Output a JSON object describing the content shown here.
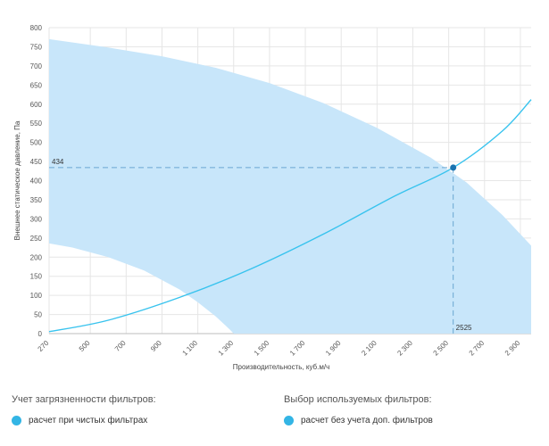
{
  "chart_data": {
    "type": "line",
    "xlabel": "Производительность, куб.м/ч",
    "ylabel": "Внешнее статическое давление, Па",
    "xlim": [
      270,
      2960
    ],
    "ylim": [
      0,
      800
    ],
    "y_ticks": [
      0,
      50,
      100,
      150,
      200,
      250,
      300,
      350,
      400,
      450,
      500,
      550,
      600,
      650,
      700,
      750,
      800
    ],
    "x_ticks": [
      {
        "value": 270,
        "label": "270"
      },
      {
        "value": 500,
        "label": "500"
      },
      {
        "value": 700,
        "label": "700"
      },
      {
        "value": 900,
        "label": "900"
      },
      {
        "value": 1100,
        "label": "1 100"
      },
      {
        "value": 1300,
        "label": "1 300"
      },
      {
        "value": 1500,
        "label": "1 500"
      },
      {
        "value": 1700,
        "label": "1 700"
      },
      {
        "value": 1900,
        "label": "1 900"
      },
      {
        "value": 2100,
        "label": "2 100"
      },
      {
        "value": 2300,
        "label": "2 300"
      },
      {
        "value": 2500,
        "label": "2 500"
      },
      {
        "value": 2700,
        "label": "2 700"
      },
      {
        "value": 2900,
        "label": "2 900"
      }
    ],
    "operating_range": {
      "upper": {
        "x": [
          270,
          600,
          900,
          1200,
          1500,
          1800,
          2100,
          2400,
          2600,
          2800,
          2960
        ],
        "y": [
          770,
          748,
          725,
          695,
          655,
          603,
          538,
          460,
          395,
          310,
          230
        ]
      },
      "lower": {
        "x": [
          270,
          400,
          600,
          800,
          1000,
          1100,
          1200,
          1280,
          1300
        ],
        "y": [
          236,
          225,
          200,
          165,
          115,
          82,
          45,
          10,
          0
        ]
      }
    },
    "system_curve": {
      "x": [
        270,
        600,
        1000,
        1400,
        1800,
        2200,
        2525,
        2800,
        2960
      ],
      "y": [
        5,
        35,
        95,
        170,
        260,
        360,
        434,
        530,
        612
      ]
    },
    "operating_point": {
      "x": 2525,
      "y": 434,
      "x_label": "2525",
      "y_label": "434"
    },
    "colors": {
      "range": "#c8e6fa",
      "curve": "#38c3ee",
      "point": "#1a73b0",
      "guide": "#6aa6d2"
    }
  },
  "options": {
    "filter_contamination": {
      "title": "Учет загрязненности фильтров:",
      "selected": "расчет при чистых фильтрах"
    },
    "filter_selection": {
      "title": "Выбор используемых фильтров:",
      "selected": "расчет без учета доп. фильтров"
    }
  }
}
